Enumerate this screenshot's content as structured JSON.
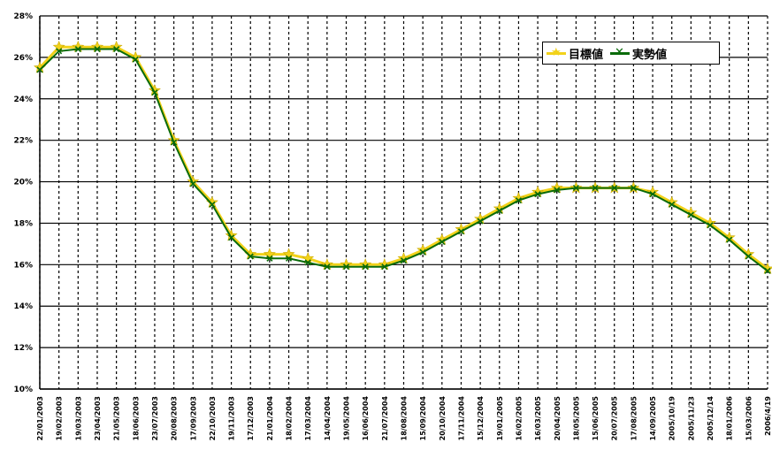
{
  "chart_data": {
    "type": "line",
    "ylim": [
      10,
      28
    ],
    "y_ticks": [
      "10%",
      "12%",
      "14%",
      "16%",
      "18%",
      "20%",
      "22%",
      "24%",
      "26%",
      "28%"
    ],
    "y_tick_values": [
      10,
      12,
      14,
      16,
      18,
      20,
      22,
      24,
      26,
      28
    ],
    "categories": [
      "22/01/2003",
      "19/02/2003",
      "19/03/2003",
      "23/04/2003",
      "21/05/2003",
      "18/06/2003",
      "23/07/2003",
      "20/08/2003",
      "17/09/2003",
      "22/10/2003",
      "19/11/2003",
      "17/12/2003",
      "21/01/2004",
      "18/02/2004",
      "17/03/2004",
      "14/04/2004",
      "19/05/2004",
      "16/06/2004",
      "21/07/2004",
      "18/08/2004",
      "15/09/2004",
      "20/10/2004",
      "17/11/2004",
      "15/12/2004",
      "19/01/2005",
      "16/02/2005",
      "16/03/2005",
      "20/04/2005",
      "18/05/2005",
      "15/06/2005",
      "20/07/2005",
      "17/08/2005",
      "14/09/2005",
      "2005/10/19",
      "2005/11/23",
      "2005/12/14",
      "18/01/2006",
      "15/03/2006",
      "2006/4/19"
    ],
    "series": [
      {
        "name": "目標値",
        "color": "#f2d21a",
        "marker": "star",
        "values": [
          25.5,
          26.5,
          26.5,
          26.5,
          26.5,
          26.0,
          24.4,
          22.0,
          20.0,
          19.0,
          17.4,
          16.5,
          16.5,
          16.5,
          16.3,
          16.0,
          16.0,
          16.0,
          16.0,
          16.3,
          16.7,
          17.2,
          17.7,
          18.2,
          18.7,
          19.2,
          19.5,
          19.7,
          19.7,
          19.7,
          19.7,
          19.7,
          19.5,
          19.0,
          18.5,
          18.0,
          17.3,
          16.5,
          15.8
        ]
      },
      {
        "name": "実勢値",
        "color": "#0a6b0a",
        "marker": "x",
        "values": [
          25.4,
          26.3,
          26.4,
          26.4,
          26.4,
          25.9,
          24.3,
          21.9,
          19.9,
          18.9,
          17.3,
          16.4,
          16.3,
          16.3,
          16.1,
          15.9,
          15.9,
          15.9,
          15.9,
          16.2,
          16.6,
          17.1,
          17.6,
          18.1,
          18.6,
          19.1,
          19.4,
          19.6,
          19.7,
          19.7,
          19.7,
          19.7,
          19.4,
          18.9,
          18.4,
          17.9,
          17.2,
          16.4,
          15.7
        ]
      }
    ],
    "grid": {
      "horizontal": true,
      "horizontal_style": "solid",
      "vertical": true,
      "vertical_style": "dotted"
    },
    "legend": {
      "position": "top-right"
    }
  }
}
